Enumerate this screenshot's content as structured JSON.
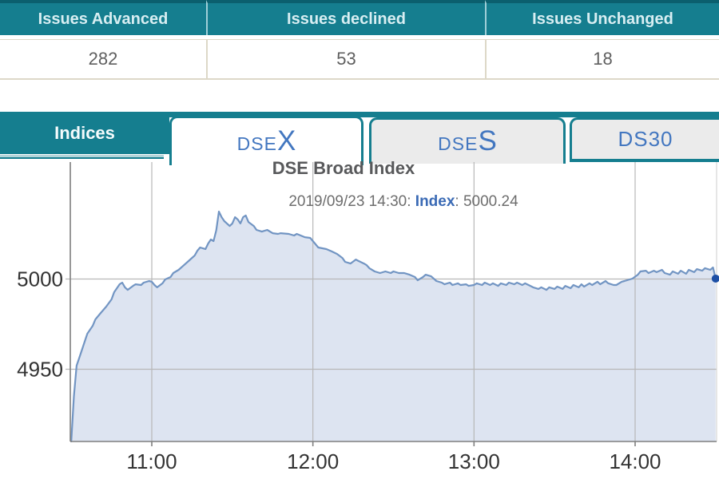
{
  "summary_table": {
    "columns": [
      {
        "header": "Issues Advanced",
        "value": "282"
      },
      {
        "header": "Issues declined",
        "value": "53"
      },
      {
        "header": "Issues Unchanged",
        "value": "18"
      }
    ]
  },
  "indices_panel": {
    "label": "Indices",
    "tabs": [
      {
        "name": "DSEX",
        "prefix": "DSE",
        "big": "X",
        "active": true
      },
      {
        "name": "DSES",
        "prefix": "DSE",
        "big": "S",
        "active": false
      },
      {
        "name": "DS30",
        "prefix": "DS30",
        "big": "",
        "active": false
      }
    ]
  },
  "colors": {
    "teal": "#157e8f",
    "teal_dark": "#0b5f6e",
    "header_text": "#d8eef2",
    "value_text": "#5f5f5f",
    "table_border": "#ddd8c8",
    "tab_text": "#4377c0",
    "tab_bg_inactive": "#ebebeb",
    "title_text": "#58595b",
    "subtitle_text": "#6e6e6e",
    "subtitle_label": "#3a6ab5",
    "line": "#7295c3",
    "fill": "#dde4f1",
    "marker": "#1d4fa5",
    "grid": "#b7b7b7",
    "axis": "#7f7f7f",
    "axis_label": "#333333"
  },
  "chart_data": {
    "type": "area",
    "title": "DSE Broad Index",
    "subtitle_prefix": "2019/09/23 14:30: ",
    "subtitle_label": "Index",
    "subtitle_suffix": ": 5000.24",
    "x_ticks": [
      "11:00",
      "12:00",
      "13:00",
      "14:00"
    ],
    "x_range": [
      "10:30",
      "14:30"
    ],
    "y_ticks": [
      5000,
      4950
    ],
    "ylim": [
      4910,
      5048
    ],
    "grid": true,
    "legend": false,
    "last_point": {
      "time": "14:30",
      "value": 5000.24
    },
    "series": [
      {
        "name": "Index",
        "points": [
          [
            "10:30",
            4910
          ],
          [
            "10:31",
            4935
          ],
          [
            "10:32",
            4952
          ],
          [
            "10:33",
            4956.4
          ],
          [
            "10:34",
            4960.8
          ],
          [
            "10:35",
            4965.3
          ],
          [
            "10:36",
            4969.7
          ],
          [
            "10:38",
            4974.1
          ],
          [
            "10:39",
            4977.6
          ],
          [
            "10:41",
            4981.2
          ],
          [
            "10:43",
            4984.7
          ],
          [
            "10:45",
            4988.7
          ],
          [
            "10:46",
            4992.7
          ],
          [
            "10:48",
            4997.1
          ],
          [
            "10:49",
            4998
          ],
          [
            "10:50",
            4995.4
          ],
          [
            "10:51",
            4994
          ],
          [
            "10:53",
            4996.2
          ],
          [
            "10:54",
            4997.1
          ],
          [
            "10:56",
            4996.7
          ],
          [
            "10:57",
            4998
          ],
          [
            "10:59",
            4998.9
          ],
          [
            "11:00",
            4998.5
          ],
          [
            "11:01",
            4996.7
          ],
          [
            "11:02",
            4995.4
          ],
          [
            "11:04",
            4997.6
          ],
          [
            "11:05",
            4999.8
          ],
          [
            "11:07",
            5001.1
          ],
          [
            "11:08",
            5003.3
          ],
          [
            "11:10",
            5005.1
          ],
          [
            "11:12",
            5007.7
          ],
          [
            "11:14",
            5010.4
          ],
          [
            "11:16",
            5013.1
          ],
          [
            "11:17",
            5015.7
          ],
          [
            "11:18",
            5017.5
          ],
          [
            "11:20",
            5016.6
          ],
          [
            "11:21",
            5019.7
          ],
          [
            "11:22",
            5021.9
          ],
          [
            "11:23",
            5021
          ],
          [
            "11:24",
            5027
          ],
          [
            "11:25",
            5037.4
          ],
          [
            "11:26",
            5034.3
          ],
          [
            "11:27",
            5032.1
          ],
          [
            "11:29",
            5029.4
          ],
          [
            "11:30",
            5030.8
          ],
          [
            "11:31",
            5034.3
          ],
          [
            "11:32",
            5033
          ],
          [
            "11:33",
            5030.8
          ],
          [
            "11:34",
            5034.3
          ],
          [
            "11:35",
            5035.2
          ],
          [
            "11:36",
            5031.6
          ],
          [
            "11:38",
            5029.4
          ],
          [
            "11:39",
            5027.2
          ],
          [
            "11:41",
            5026.3
          ],
          [
            "11:43",
            5027.2
          ],
          [
            "11:45",
            5025.4
          ],
          [
            "11:47",
            5025
          ],
          [
            "11:48",
            5025.4
          ],
          [
            "11:51",
            5025
          ],
          [
            "11:53",
            5024.1
          ],
          [
            "11:54",
            5025
          ],
          [
            "11:57",
            5023.2
          ],
          [
            "11:59",
            5022.8
          ],
          [
            "12:00",
            5021
          ],
          [
            "12:02",
            5017.5
          ],
          [
            "12:05",
            5016.6
          ],
          [
            "12:07",
            5015.3
          ],
          [
            "12:09",
            5013.9
          ],
          [
            "12:11",
            5011.7
          ],
          [
            "12:12",
            5009.5
          ],
          [
            "12:14",
            5008.6
          ],
          [
            "12:16",
            5010.8
          ],
          [
            "12:17",
            5010
          ],
          [
            "12:19",
            5008.6
          ],
          [
            "12:20",
            5007.7
          ],
          [
            "12:21",
            5006
          ],
          [
            "12:23",
            5004.2
          ],
          [
            "12:25",
            5003.3
          ],
          [
            "12:27",
            5004.2
          ],
          [
            "12:29",
            5003.3
          ],
          [
            "12:30",
            5004.2
          ],
          [
            "12:32",
            5003.3
          ],
          [
            "12:34",
            5003.3
          ],
          [
            "12:36",
            5002.4
          ],
          [
            "12:38",
            5001.1
          ],
          [
            "12:39",
            4999.3
          ],
          [
            "12:41",
            5001.1
          ],
          [
            "12:42",
            5002.4
          ],
          [
            "12:44",
            5001.5
          ],
          [
            "12:45",
            5000.2
          ],
          [
            "12:46",
            4998.9
          ],
          [
            "12:48",
            4998
          ],
          [
            "12:49",
            4997.1
          ],
          [
            "12:51",
            4998
          ],
          [
            "12:52",
            4996.7
          ],
          [
            "12:54",
            4997.6
          ],
          [
            "12:55",
            4996.7
          ],
          [
            "12:57",
            4997.1
          ],
          [
            "12:58",
            4996.2
          ],
          [
            "13:00",
            4996.7
          ],
          [
            "13:01",
            4997.6
          ],
          [
            "13:03",
            4996.7
          ],
          [
            "13:04",
            4998
          ],
          [
            "13:06",
            4996.7
          ],
          [
            "13:07",
            4997.6
          ],
          [
            "13:09",
            4996.2
          ],
          [
            "13:10",
            4997.6
          ],
          [
            "13:12",
            4996.7
          ],
          [
            "13:13",
            4998
          ],
          [
            "13:15",
            4997.1
          ],
          [
            "13:16",
            4998
          ],
          [
            "13:18",
            4996.7
          ],
          [
            "13:19",
            4997.6
          ],
          [
            "13:21",
            4996.2
          ],
          [
            "13:22",
            4995.4
          ],
          [
            "13:24",
            4994.5
          ],
          [
            "13:25",
            4995.4
          ],
          [
            "13:27",
            4994
          ],
          [
            "13:28",
            4995.4
          ],
          [
            "13:30",
            4994.5
          ],
          [
            "13:31",
            4995.8
          ],
          [
            "13:33",
            4994.5
          ],
          [
            "13:34",
            4996.2
          ],
          [
            "13:36",
            4994.9
          ],
          [
            "13:37",
            4996.7
          ],
          [
            "13:39",
            4995.4
          ],
          [
            "13:40",
            4997.1
          ],
          [
            "13:41",
            4995.8
          ],
          [
            "13:43",
            4997.6
          ],
          [
            "13:44",
            4996.7
          ],
          [
            "13:46",
            4998.5
          ],
          [
            "13:47",
            4997.1
          ],
          [
            "13:49",
            4998.9
          ],
          [
            "13:50",
            4997.6
          ],
          [
            "13:52",
            4996.7
          ],
          [
            "13:53",
            4996.7
          ],
          [
            "13:55",
            4998.5
          ],
          [
            "13:56",
            4998.9
          ],
          [
            "13:58",
            4999.8
          ],
          [
            "13:59",
            5000.2
          ],
          [
            "14:01",
            5002.4
          ],
          [
            "14:02",
            5004.2
          ],
          [
            "14:04",
            5004.6
          ],
          [
            "14:05",
            5003.3
          ],
          [
            "14:07",
            5004.6
          ],
          [
            "14:08",
            5003.8
          ],
          [
            "14:10",
            5005.1
          ],
          [
            "14:11",
            5003.3
          ],
          [
            "14:13",
            5002.4
          ],
          [
            "14:14",
            5004.2
          ],
          [
            "14:16",
            5002.9
          ],
          [
            "14:17",
            5004.6
          ],
          [
            "14:19",
            5002.9
          ],
          [
            "14:20",
            5005.1
          ],
          [
            "14:22",
            5003.8
          ],
          [
            "14:23",
            5005.5
          ],
          [
            "14:25",
            5004.6
          ],
          [
            "14:26",
            5006
          ],
          [
            "14:28",
            5005.1
          ],
          [
            "14:29",
            5006.4
          ],
          [
            "14:30",
            5000.24
          ]
        ]
      }
    ]
  }
}
